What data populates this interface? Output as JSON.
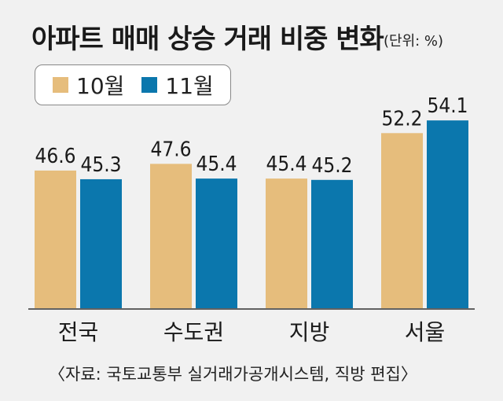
{
  "chart_data": {
    "type": "bar",
    "title": "아파트 매매 상승 거래 비중 변화",
    "unit": "(단위: %)",
    "categories": [
      "전국",
      "수도권",
      "지방",
      "서울"
    ],
    "series": [
      {
        "name": "10월",
        "color": "#e6bd7c",
        "values": [
          46.6,
          47.6,
          45.4,
          52.2
        ]
      },
      {
        "name": "11월",
        "color": "#0b77ad",
        "values": [
          45.3,
          45.4,
          45.2,
          54.1
        ]
      }
    ],
    "ylim": [
      26,
      56
    ],
    "legend": "top-left",
    "grid": false,
    "source": "〈자료: 국토교통부 실거래가공개시스템, 직방 편집〉"
  }
}
